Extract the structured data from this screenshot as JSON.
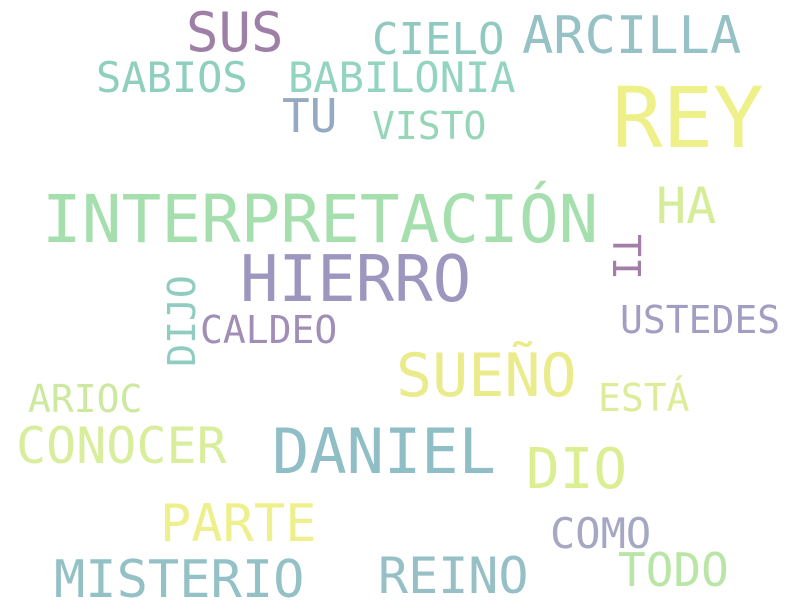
{
  "words": {
    "rey": {
      "text": "REY",
      "color": "#eef08a"
    },
    "interpretacion": {
      "text": "INTERPRETACIÓN",
      "color": "#a6dfae"
    },
    "hierro": {
      "text": "HIERRO",
      "color": "#9d97c0"
    },
    "daniel": {
      "text": "DANIEL",
      "color": "#8fbec6"
    },
    "sueno": {
      "text": "SUEÑO",
      "color": "#eaec8c"
    },
    "sus": {
      "text": "SUS",
      "color": "#9e7fa6"
    },
    "arcilla": {
      "text": "ARCILLA",
      "color": "#96c2c6"
    },
    "cielo": {
      "text": "CIELO",
      "color": "#90c9c0"
    },
    "sabios": {
      "text": "SABIOS",
      "color": "#8ecfbe"
    },
    "babilonia": {
      "text": "BABILONIA",
      "color": "#93d4be"
    },
    "tu": {
      "text": "TU",
      "color": "#93aac0"
    },
    "visto": {
      "text": "VISTO",
      "color": "#96d6b8"
    },
    "ha": {
      "text": "HA",
      "color": "#d5ec98"
    },
    "ti": {
      "text": "TI",
      "color": "#a37ea8"
    },
    "ustedes": {
      "text": "USTEDES",
      "color": "#a29ec3"
    },
    "dijo": {
      "text": "DIJO",
      "color": "#8fcdc0"
    },
    "caldeo": {
      "text": "CALDEO",
      "color": "#a08eb6"
    },
    "arioc": {
      "text": "ARIOC",
      "color": "#cde9a0"
    },
    "esta": {
      "text": "ESTÁ",
      "color": "#dcec98"
    },
    "conocer": {
      "text": "CONOCER",
      "color": "#d8ee9c"
    },
    "dio": {
      "text": "DIO",
      "color": "#dcee92"
    },
    "parte": {
      "text": "PARTE",
      "color": "#eef08e"
    },
    "como": {
      "text": "COMO",
      "color": "#a5a7c3"
    },
    "misterio": {
      "text": "MISTERIO",
      "color": "#93c1c6"
    },
    "reino": {
      "text": "REINO",
      "color": "#96bfc6"
    },
    "todo": {
      "text": "TODO",
      "color": "#b9e6a7"
    }
  }
}
